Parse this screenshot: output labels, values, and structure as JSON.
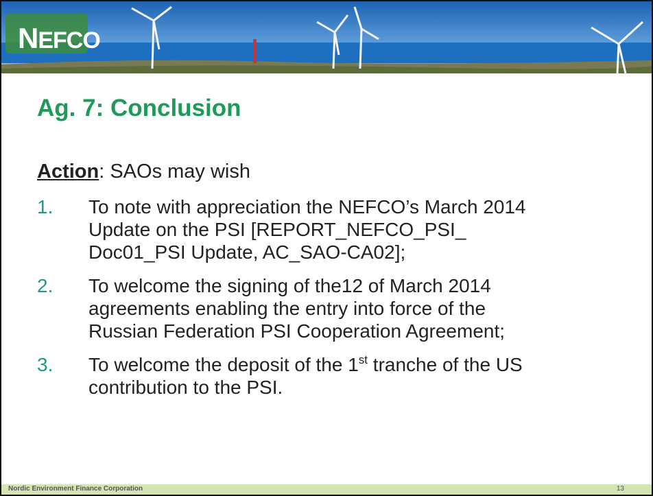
{
  "header": {
    "logo": {
      "initial": "N",
      "rest": "EFCO"
    }
  },
  "title": "Ag. 7: Conclusion",
  "action": {
    "label": "Action",
    "text": ": SAOs may wish"
  },
  "list": {
    "items": [
      {
        "number": "1.",
        "lines": [
          "To note with appreciation the NEFCO’s March 2014",
          "Update on the PSI  [REPORT_NEFCO_PSI_",
          "Doc01_PSI Update, AC_SAO-CA02];"
        ]
      },
      {
        "number": "2.",
        "lines": [
          "To welcome the signing of the12 of March 2014",
          "agreements enabling the entry into force of the",
          "Russian Federation PSI Cooperation Agreement;"
        ]
      },
      {
        "number": "3.",
        "lines": [
          {
            "before": "To welcome the deposit of the 1",
            "sup": "st",
            "after": " tranche of the US"
          },
          "contribution to the PSI."
        ]
      }
    ]
  },
  "footer": {
    "organization": "Nordic Environment Finance Corporation",
    "page": "13"
  }
}
